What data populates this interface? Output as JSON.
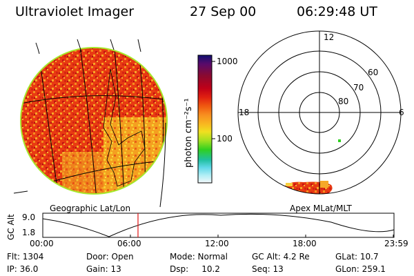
{
  "header": {
    "title": "Ultraviolet Imager",
    "date": "27 Sep 00",
    "time": "06:29:48 UT"
  },
  "earth_image": {
    "caption": "Geographic Lat/Lon"
  },
  "colorbar": {
    "unit_label": "photon cm⁻²s⁻¹",
    "tick_labels": [
      "1000",
      "100"
    ],
    "colors": [
      "#101070",
      "#5a0a6a",
      "#8a0a30",
      "#c00018",
      "#e02010",
      "#f05a10",
      "#f89020",
      "#f8b820",
      "#f0e020",
      "#a0e020",
      "#30d020",
      "#20c0a0",
      "#60d8e8",
      "#b0eef5",
      "#f4f8fa"
    ]
  },
  "polar_plot": {
    "caption": "Apex MLat/MLT",
    "mlt_labels": {
      "top": "12",
      "left": "18",
      "right": "6"
    },
    "lat_labels": [
      "60",
      "70",
      "80"
    ]
  },
  "altitude_plot": {
    "ylabel": "GC Alt",
    "y_ticks": [
      "9.0",
      "1.8"
    ],
    "x_ticks": [
      "00:00",
      "06:00",
      "12:00",
      "18:00",
      "23:59"
    ]
  },
  "info": {
    "row1": [
      "Flt:  1304",
      "Door:  Open",
      "Mode:  Normal",
      "GC Alt:  4.2 Re",
      "GLat:  10.7"
    ],
    "row2": [
      "IP:  36.0",
      "Gain:  13",
      "Dsp:     10.2",
      "Seq:  13",
      "GLon:  259.1"
    ]
  }
}
